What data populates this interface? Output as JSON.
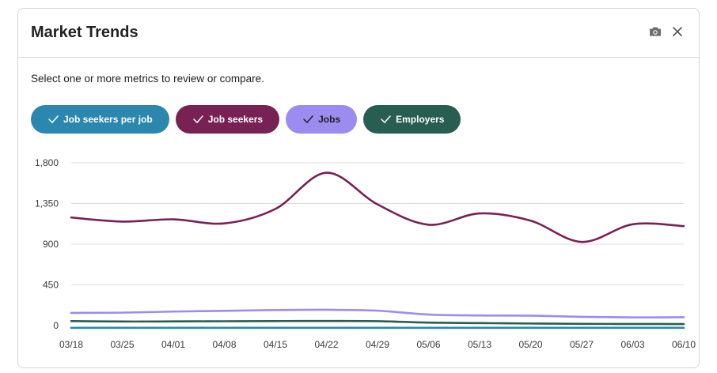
{
  "panel": {
    "title": "Market Trends",
    "subtitle": "Select one or more metrics to review or compare.",
    "camera_icon": "camera-icon",
    "close_icon": "close-icon"
  },
  "chips": [
    {
      "label": "Job seekers per job",
      "color": "#2b87ad",
      "text_color": "#ffffff",
      "checked": true
    },
    {
      "label": "Job seekers",
      "color": "#782155",
      "text_color": "#ffffff",
      "checked": true
    },
    {
      "label": "Jobs",
      "color": "#9c8cf0",
      "text_color": "#1f1f1f",
      "checked": true
    },
    {
      "label": "Employers",
      "color": "#275e51",
      "text_color": "#ffffff",
      "checked": true
    }
  ],
  "chart_data": {
    "type": "line",
    "x": [
      "03/18",
      "03/25",
      "04/01",
      "04/08",
      "04/15",
      "04/22",
      "04/29",
      "05/06",
      "05/13",
      "05/20",
      "05/27",
      "06/03",
      "06/10"
    ],
    "y_ticks": [
      "1,800",
      "1,350",
      "900",
      "450",
      "0"
    ],
    "y_tick_values": [
      1800,
      1350,
      900,
      450,
      0
    ],
    "ylim": [
      0,
      1800
    ],
    "grid": true,
    "series": [
      {
        "name": "Job seekers",
        "color": "#782155",
        "values": [
          1195,
          1150,
          1175,
          1130,
          1290,
          1690,
          1340,
          1115,
          1240,
          1160,
          925,
          1120,
          1100
        ]
      },
      {
        "name": "Jobs",
        "color": "#9c8cf0",
        "values": [
          140,
          143,
          155,
          163,
          172,
          175,
          165,
          122,
          112,
          110,
          97,
          90,
          92
        ]
      },
      {
        "name": "Employers",
        "color": "#275e51",
        "values": [
          50,
          45,
          46,
          48,
          50,
          51,
          49,
          33,
          28,
          23,
          19,
          18,
          17
        ]
      },
      {
        "name": "Job seekers per job",
        "color": "#2b87ad",
        "values": [
          -25,
          -25,
          -25,
          -25,
          -25,
          -25,
          -25,
          -25,
          -25,
          -25,
          -25,
          -25,
          -25
        ]
      }
    ]
  }
}
